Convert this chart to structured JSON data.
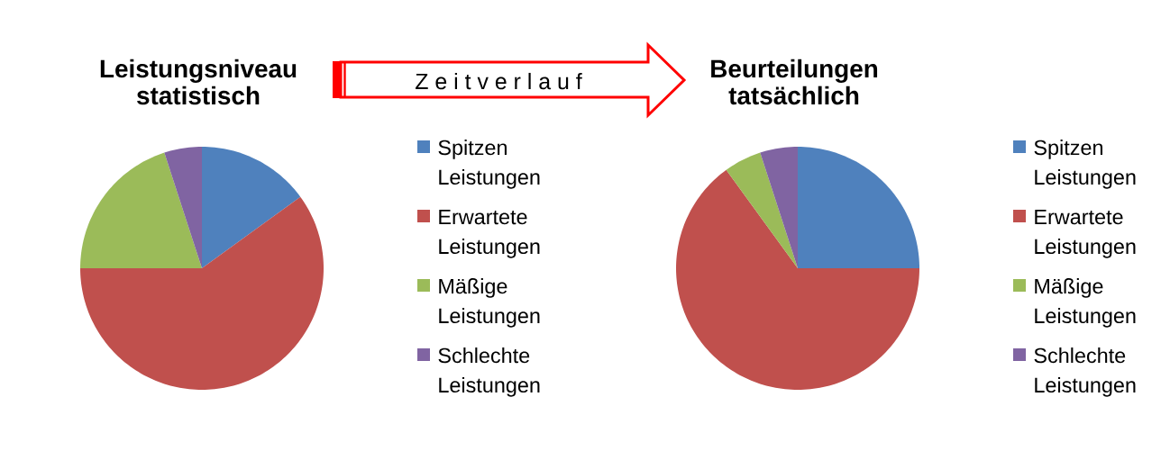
{
  "chart_data": [
    {
      "type": "pie",
      "title": "Leistungsniveau statistisch",
      "categories": [
        "Spitzen Leistungen",
        "Erwartete Leistungen",
        "Mäßige Leistungen",
        "Schlechte Leistungen"
      ],
      "values": [
        15,
        60,
        20,
        5
      ],
      "colors": [
        "#4f81bd",
        "#c0504d",
        "#9bbb59",
        "#8064a2"
      ],
      "legend": "right"
    },
    {
      "type": "other",
      "annotations": [
        "Z e i t v e r l a u f"
      ]
    },
    {
      "type": "pie",
      "title": "Beurteilungen tatsächlich",
      "categories": [
        "Spitzen Leistungen",
        "Erwartete Leistungen",
        "Mäßige Leistungen",
        "Schlechte Leistungen"
      ],
      "values": [
        25,
        65,
        5,
        5
      ],
      "colors": [
        "#4f81bd",
        "#c0504d",
        "#9bbb59",
        "#8064a2"
      ],
      "legend": "right"
    }
  ]
}
